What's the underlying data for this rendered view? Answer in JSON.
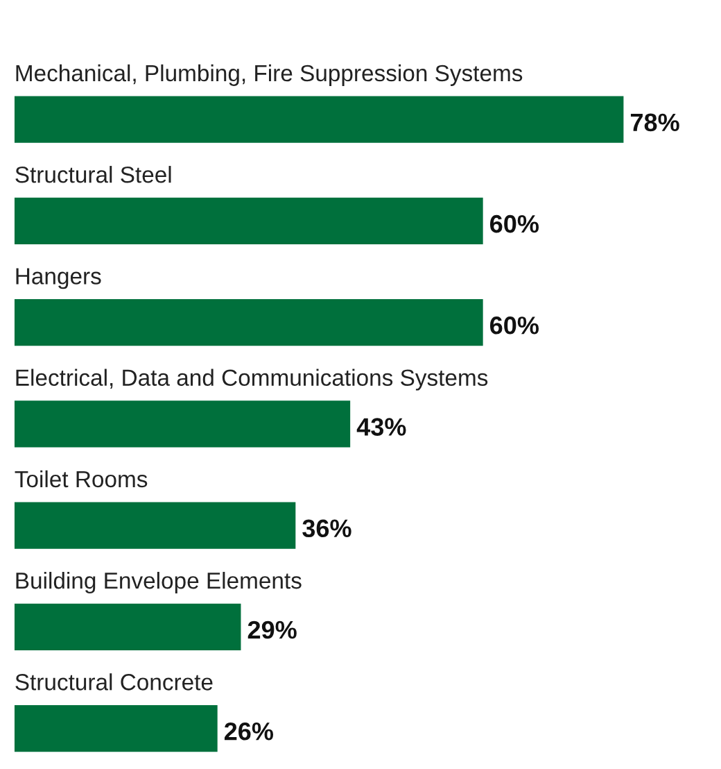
{
  "chart_data": {
    "type": "bar",
    "orientation": "horizontal",
    "categories": [
      "Mechanical, Plumbing, Fire Suppression Systems",
      "Structural Steel",
      "Hangers",
      "Electrical, Data and Communications Systems",
      "Toilet Rooms",
      "Building Envelope Elements",
      "Structural Concrete"
    ],
    "values": [
      78,
      60,
      60,
      43,
      36,
      29,
      26
    ],
    "value_labels": [
      "78%",
      "60%",
      "60%",
      "43%",
      "36%",
      "29%",
      "26%"
    ],
    "color": "#00703c"
  }
}
